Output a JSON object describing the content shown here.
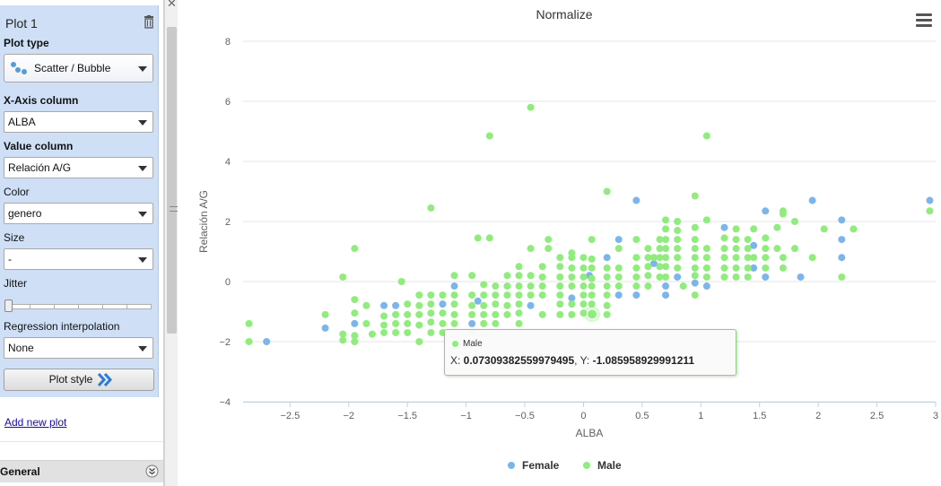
{
  "sidebar": {
    "panel_title": "Plot 1",
    "plot_type_label": "Plot type",
    "plot_type_value": "Scatter / Bubble",
    "x_axis_label": "X-Axis column",
    "x_axis_value": "ALBA",
    "value_label": "Value column",
    "value_value": "Relación A/G",
    "color_label": "Color",
    "color_value": "genero",
    "size_label": "Size",
    "size_value": "-",
    "jitter_label": "Jitter",
    "regression_label": "Regression interpolation",
    "regression_value": "None",
    "plot_style_label": "Plot style",
    "add_plot_label": "Add new plot",
    "general_label": "General"
  },
  "tooltip": {
    "series": "Male",
    "x_prefix": "X: ",
    "x_value": "0.07309382559979495",
    "y_prefix": ", Y: ",
    "y_value": "-1.085958929991211"
  },
  "colors": {
    "female": "#7cb5ec",
    "male": "#90ed7d",
    "panel": "#cfe0f6"
  },
  "chart_data": {
    "type": "scatter",
    "title": "Normalize",
    "xlabel": "ALBA",
    "ylabel": "Relación A/G",
    "xlim": [
      -2.9,
      3.0
    ],
    "ylim": [
      -4,
      8
    ],
    "x_ticks": [
      "−2.5",
      "−2",
      "−1.5",
      "−1",
      "−0.5",
      "0",
      "0.5",
      "1",
      "1.5",
      "2",
      "2.5",
      "3"
    ],
    "x_tick_values": [
      -2.5,
      -2,
      -1.5,
      -1,
      -0.5,
      0,
      0.5,
      1,
      1.5,
      2,
      2.5,
      3
    ],
    "y_ticks": [
      "8",
      "6",
      "4",
      "2",
      "0",
      "−2",
      "−4"
    ],
    "y_tick_values": [
      8,
      6,
      4,
      2,
      0,
      -2,
      -4
    ],
    "grid": true,
    "legend_position": "bottom",
    "series": [
      {
        "name": "Female",
        "points": [
          [
            -2.7,
            -2.0
          ],
          [
            -2.2,
            -1.55
          ],
          [
            -1.95,
            -1.4
          ],
          [
            -1.7,
            -0.8
          ],
          [
            -1.6,
            -0.8
          ],
          [
            -1.2,
            -0.75
          ],
          [
            -1.1,
            -0.15
          ],
          [
            -0.95,
            -1.4
          ],
          [
            -0.9,
            -0.65
          ],
          [
            -0.45,
            -0.8
          ],
          [
            -0.1,
            -0.55
          ],
          [
            0.05,
            0.2
          ],
          [
            0.2,
            0.8
          ],
          [
            0.3,
            1.4
          ],
          [
            0.3,
            -0.45
          ],
          [
            0.45,
            2.7
          ],
          [
            0.45,
            -0.45
          ],
          [
            0.6,
            0.6
          ],
          [
            0.7,
            -0.45
          ],
          [
            0.7,
            -0.15
          ],
          [
            0.8,
            0.15
          ],
          [
            0.95,
            -0.05
          ],
          [
            1.05,
            -0.15
          ],
          [
            1.2,
            1.8
          ],
          [
            1.45,
            1.2
          ],
          [
            1.45,
            0.45
          ],
          [
            1.55,
            2.35
          ],
          [
            1.55,
            0.15
          ],
          [
            1.85,
            0.15
          ],
          [
            1.95,
            2.7
          ],
          [
            2.2,
            2.05
          ],
          [
            2.2,
            1.4
          ],
          [
            2.2,
            0.8
          ],
          [
            2.95,
            2.7
          ]
        ]
      },
      {
        "name": "Male",
        "points": [
          [
            -2.85,
            -1.4
          ],
          [
            -2.85,
            -2.0
          ],
          [
            -2.2,
            -1.1
          ],
          [
            -2.05,
            0.15
          ],
          [
            -2.05,
            -1.75
          ],
          [
            -2.05,
            -1.95
          ],
          [
            -1.95,
            1.1
          ],
          [
            -1.95,
            -0.6
          ],
          [
            -1.95,
            -1.05
          ],
          [
            -1.95,
            -1.8
          ],
          [
            -1.95,
            -2.0
          ],
          [
            -1.85,
            -0.8
          ],
          [
            -1.85,
            -1.4
          ],
          [
            -1.8,
            -1.75
          ],
          [
            -1.7,
            -1.15
          ],
          [
            -1.7,
            -1.45
          ],
          [
            -1.7,
            -1.7
          ],
          [
            -1.6,
            -1.1
          ],
          [
            -1.6,
            -1.4
          ],
          [
            -1.6,
            -1.7
          ],
          [
            -1.55,
            0.0
          ],
          [
            -1.5,
            -0.75
          ],
          [
            -1.5,
            -1.1
          ],
          [
            -1.5,
            -1.4
          ],
          [
            -1.5,
            -1.7
          ],
          [
            -1.4,
            -0.45
          ],
          [
            -1.4,
            -0.8
          ],
          [
            -1.4,
            -1.1
          ],
          [
            -1.4,
            -1.45
          ],
          [
            -1.4,
            -2.0
          ],
          [
            -1.3,
            2.45
          ],
          [
            -1.3,
            -0.45
          ],
          [
            -1.3,
            -0.75
          ],
          [
            -1.3,
            -1.05
          ],
          [
            -1.3,
            -1.35
          ],
          [
            -1.3,
            -1.7
          ],
          [
            -1.2,
            -0.45
          ],
          [
            -1.2,
            -1.05
          ],
          [
            -1.2,
            -1.4
          ],
          [
            -1.2,
            -1.7
          ],
          [
            -1.1,
            0.2
          ],
          [
            -1.1,
            -0.45
          ],
          [
            -1.1,
            -0.75
          ],
          [
            -1.1,
            -1.1
          ],
          [
            -1.1,
            -1.4
          ],
          [
            -0.95,
            0.2
          ],
          [
            -0.95,
            -0.45
          ],
          [
            -0.95,
            -0.8
          ],
          [
            -0.95,
            -1.1
          ],
          [
            -0.95,
            -1.7
          ],
          [
            -0.9,
            1.45
          ],
          [
            -0.85,
            -0.1
          ],
          [
            -0.85,
            -0.45
          ],
          [
            -0.85,
            -0.8
          ],
          [
            -0.85,
            -1.1
          ],
          [
            -0.85,
            -1.4
          ],
          [
            -0.85,
            -1.75
          ],
          [
            -0.8,
            4.85
          ],
          [
            -0.8,
            1.45
          ],
          [
            -0.75,
            -0.15
          ],
          [
            -0.75,
            -0.45
          ],
          [
            -0.75,
            -0.75
          ],
          [
            -0.75,
            -1.1
          ],
          [
            -0.75,
            -1.4
          ],
          [
            -0.65,
            0.2
          ],
          [
            -0.65,
            -0.15
          ],
          [
            -0.65,
            -0.45
          ],
          [
            -0.65,
            -0.8
          ],
          [
            -0.65,
            -1.1
          ],
          [
            -0.55,
            0.5
          ],
          [
            -0.55,
            0.2
          ],
          [
            -0.55,
            -0.15
          ],
          [
            -0.55,
            -0.45
          ],
          [
            -0.55,
            -0.75
          ],
          [
            -0.55,
            -1.05
          ],
          [
            -0.55,
            -1.4
          ],
          [
            -0.45,
            5.8
          ],
          [
            -0.45,
            1.1
          ],
          [
            -0.45,
            0.2
          ],
          [
            -0.45,
            -0.15
          ],
          [
            -0.45,
            -0.45
          ],
          [
            -0.35,
            0.5
          ],
          [
            -0.35,
            0.15
          ],
          [
            -0.35,
            -0.15
          ],
          [
            -0.35,
            -0.45
          ],
          [
            -0.35,
            -1.1
          ],
          [
            -0.3,
            1.4
          ],
          [
            -0.3,
            1.1
          ],
          [
            -0.2,
            0.8
          ],
          [
            -0.2,
            0.5
          ],
          [
            -0.2,
            0.15
          ],
          [
            -0.2,
            -0.15
          ],
          [
            -0.2,
            -0.45
          ],
          [
            -0.2,
            -0.75
          ],
          [
            -0.2,
            -1.1
          ],
          [
            -0.1,
            0.95
          ],
          [
            -0.1,
            0.8
          ],
          [
            -0.1,
            0.45
          ],
          [
            -0.1,
            0.15
          ],
          [
            -0.1,
            -0.15
          ],
          [
            -0.1,
            -0.75
          ],
          [
            -0.1,
            -1.1
          ],
          [
            0.0,
            0.8
          ],
          [
            0.0,
            0.45
          ],
          [
            0.0,
            0.15
          ],
          [
            0.0,
            -0.15
          ],
          [
            0.0,
            -0.45
          ],
          [
            0.0,
            -0.75
          ],
          [
            0.0,
            -1.05
          ],
          [
            0.07,
            1.4
          ],
          [
            0.07,
            0.75
          ],
          [
            0.07,
            0.45
          ],
          [
            0.07,
            0.1
          ],
          [
            0.07,
            -0.15
          ],
          [
            0.07,
            -0.45
          ],
          [
            0.07,
            -0.75
          ],
          [
            0.07,
            -1.09
          ],
          [
            0.2,
            3.0
          ],
          [
            0.2,
            0.45
          ],
          [
            0.2,
            0.15
          ],
          [
            0.2,
            -0.15
          ],
          [
            0.2,
            -0.45
          ],
          [
            0.2,
            -0.8
          ],
          [
            0.2,
            -1.1
          ],
          [
            0.3,
            1.1
          ],
          [
            0.3,
            0.45
          ],
          [
            0.3,
            0.15
          ],
          [
            0.3,
            -0.15
          ],
          [
            0.45,
            1.4
          ],
          [
            0.45,
            0.8
          ],
          [
            0.45,
            0.45
          ],
          [
            0.45,
            0.15
          ],
          [
            0.45,
            -0.15
          ],
          [
            0.55,
            1.1
          ],
          [
            0.55,
            0.8
          ],
          [
            0.55,
            0.5
          ],
          [
            0.55,
            0.2
          ],
          [
            0.55,
            -0.15
          ],
          [
            0.6,
            0.8
          ],
          [
            0.65,
            1.4
          ],
          [
            0.65,
            1.1
          ],
          [
            0.65,
            0.8
          ],
          [
            0.65,
            0.5
          ],
          [
            0.65,
            0.15
          ],
          [
            0.7,
            2.05
          ],
          [
            0.7,
            1.75
          ],
          [
            0.7,
            1.4
          ],
          [
            0.7,
            1.1
          ],
          [
            0.7,
            0.8
          ],
          [
            0.7,
            0.5
          ],
          [
            0.7,
            0.15
          ],
          [
            0.8,
            2.0
          ],
          [
            0.8,
            1.7
          ],
          [
            0.8,
            1.4
          ],
          [
            0.8,
            1.1
          ],
          [
            0.8,
            0.8
          ],
          [
            0.8,
            0.45
          ],
          [
            0.85,
            -0.15
          ],
          [
            0.95,
            2.85
          ],
          [
            0.95,
            1.8
          ],
          [
            0.95,
            1.4
          ],
          [
            0.95,
            1.1
          ],
          [
            0.95,
            0.8
          ],
          [
            0.95,
            0.45
          ],
          [
            0.95,
            0.2
          ],
          [
            0.95,
            -0.45
          ],
          [
            1.05,
            4.85
          ],
          [
            1.05,
            2.05
          ],
          [
            1.05,
            1.1
          ],
          [
            1.05,
            0.8
          ],
          [
            1.05,
            0.45
          ],
          [
            1.05,
            0.15
          ],
          [
            1.2,
            1.45
          ],
          [
            1.2,
            1.1
          ],
          [
            1.2,
            0.8
          ],
          [
            1.2,
            0.45
          ],
          [
            1.2,
            0.15
          ],
          [
            1.3,
            1.75
          ],
          [
            1.3,
            1.4
          ],
          [
            1.3,
            1.1
          ],
          [
            1.3,
            0.8
          ],
          [
            1.3,
            0.45
          ],
          [
            1.3,
            0.15
          ],
          [
            1.4,
            1.4
          ],
          [
            1.4,
            1.1
          ],
          [
            1.4,
            0.8
          ],
          [
            1.4,
            0.45
          ],
          [
            1.4,
            0.15
          ],
          [
            1.45,
            1.75
          ],
          [
            1.45,
            0.8
          ],
          [
            1.55,
            1.45
          ],
          [
            1.55,
            1.1
          ],
          [
            1.55,
            0.8
          ],
          [
            1.55,
            0.45
          ],
          [
            1.65,
            1.8
          ],
          [
            1.65,
            1.1
          ],
          [
            1.7,
            2.35
          ],
          [
            1.7,
            2.25
          ],
          [
            1.7,
            0.8
          ],
          [
            1.7,
            0.45
          ],
          [
            1.8,
            2.0
          ],
          [
            1.8,
            1.1
          ],
          [
            1.95,
            0.8
          ],
          [
            2.05,
            1.75
          ],
          [
            2.2,
            0.15
          ],
          [
            2.3,
            1.75
          ],
          [
            2.95,
            2.35
          ]
        ]
      }
    ]
  }
}
